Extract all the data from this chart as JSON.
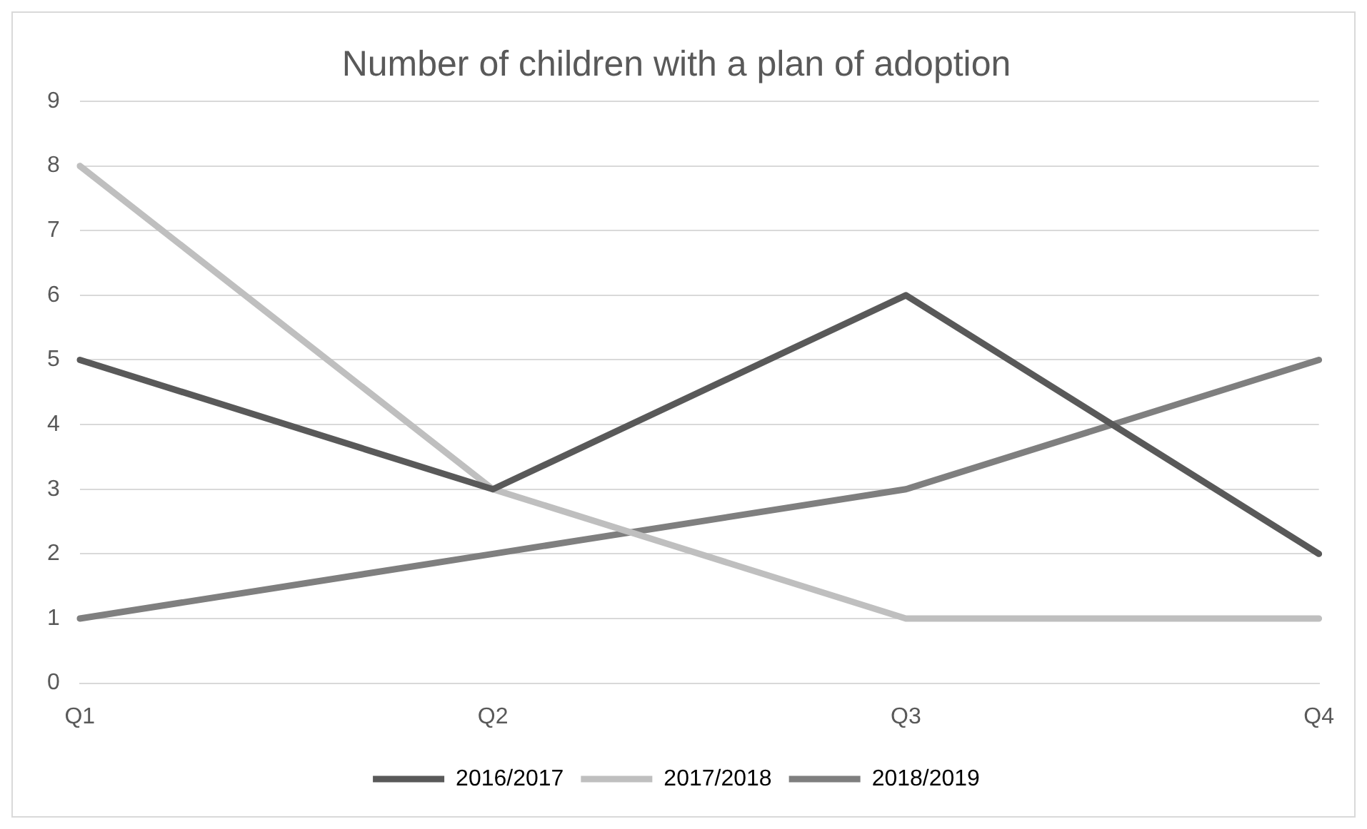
{
  "chart_data": {
    "type": "line",
    "title": "Number of children with a plan of adoption",
    "categories": [
      "Q1",
      "Q2",
      "Q3",
      "Q4"
    ],
    "series": [
      {
        "name": "2016/2017",
        "color": "#595959",
        "values": [
          5,
          3,
          6,
          2
        ]
      },
      {
        "name": "2017/2018",
        "color": "#bfbfbf",
        "values": [
          8,
          3,
          1,
          1
        ]
      },
      {
        "name": "2018/2019",
        "color": "#7f7f7f",
        "values": [
          1,
          2,
          3,
          5
        ]
      }
    ],
    "ylim": [
      0,
      9
    ],
    "yticks": [
      0,
      1,
      2,
      3,
      4,
      5,
      6,
      7,
      8,
      9
    ],
    "grid": "y",
    "legend": "bottom",
    "marker": "none",
    "line_style": "solid"
  }
}
